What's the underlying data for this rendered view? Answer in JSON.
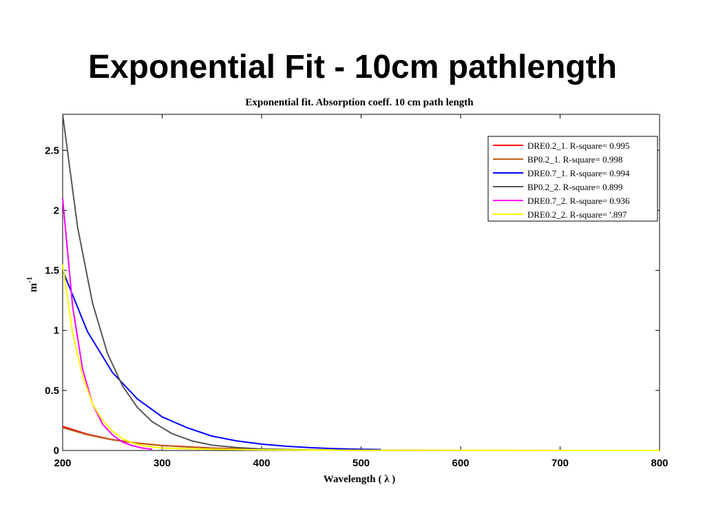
{
  "slide": {
    "title": "Exponential Fit - 10cm pathlength"
  },
  "chart_data": {
    "type": "line",
    "title": "Exponential fit. Absorption coeff. 10 cm path length",
    "xlabel": "Wavelength ( λ )",
    "ylabel": "m",
    "ylabel_superscript": "-1",
    "xlim": [
      200,
      800
    ],
    "ylim": [
      0,
      2.8
    ],
    "xticks": [
      200,
      300,
      400,
      500,
      600,
      700,
      800
    ],
    "yticks": [
      0,
      0.5,
      1,
      1.5,
      2,
      2.5
    ],
    "xtick_labels": [
      "200",
      "300",
      "400",
      "500",
      "600",
      "700",
      "800"
    ],
    "ytick_labels": [
      "0",
      "0.5",
      "1",
      "1.5",
      "2",
      "2.5"
    ],
    "grid": false,
    "legend_position": "top-right",
    "series": [
      {
        "name": "DRE0.2_1. R-square= 0.995",
        "color": "#ff0000",
        "x": [
          200,
          225,
          250,
          275,
          300,
          350,
          400,
          450,
          500,
          550,
          600
        ],
        "y": [
          0.2,
          0.135,
          0.09,
          0.062,
          0.042,
          0.02,
          0.009,
          0.004,
          0.002,
          0.001,
          0.0
        ]
      },
      {
        "name": "BP0.2_1. R-square= 0.998",
        "color": "#b8621b",
        "x": [
          200,
          225,
          250,
          275,
          300,
          350,
          400,
          450,
          500,
          550,
          600
        ],
        "y": [
          0.19,
          0.13,
          0.088,
          0.06,
          0.04,
          0.019,
          0.009,
          0.004,
          0.002,
          0.001,
          0.0
        ]
      },
      {
        "name": "DRE0.7_1. R-square= 0.994",
        "color": "#0000ff",
        "x": [
          200,
          225,
          250,
          275,
          300,
          325,
          350,
          375,
          400,
          425,
          450,
          475,
          500,
          520
        ],
        "y": [
          1.5,
          0.99,
          0.65,
          0.43,
          0.28,
          0.19,
          0.12,
          0.08,
          0.053,
          0.035,
          0.023,
          0.015,
          0.01,
          0.008
        ]
      },
      {
        "name": "BP0.2_2. R-square= 0.899",
        "color": "#555555",
        "x": [
          200,
          215,
          230,
          245,
          260,
          275,
          290,
          310,
          330,
          350,
          375,
          400,
          450,
          500,
          550,
          600
        ],
        "y": [
          2.8,
          1.86,
          1.23,
          0.81,
          0.54,
          0.36,
          0.24,
          0.14,
          0.08,
          0.045,
          0.024,
          0.012,
          0.004,
          0.001,
          0.0,
          0.0
        ]
      },
      {
        "name": "DRE0.7_2. R-square= 0.936",
        "color": "#ff00ff",
        "x": [
          200,
          210,
          220,
          230,
          240,
          250,
          260,
          270,
          280,
          290
        ],
        "y": [
          2.1,
          1.2,
          0.68,
          0.39,
          0.22,
          0.13,
          0.07,
          0.04,
          0.02,
          0.01
        ]
      },
      {
        "name": "DRE0.2_2. R-square= '.897",
        "color": "#ffff00",
        "x": [
          200,
          210,
          220,
          230,
          240,
          250,
          260,
          270,
          280,
          300,
          350,
          400,
          500,
          600,
          700,
          800
        ],
        "y": [
          1.55,
          0.98,
          0.62,
          0.39,
          0.25,
          0.16,
          0.1,
          0.063,
          0.04,
          0.02,
          0.01,
          0.005,
          0.002,
          0.001,
          0.0,
          0.0
        ]
      }
    ]
  }
}
